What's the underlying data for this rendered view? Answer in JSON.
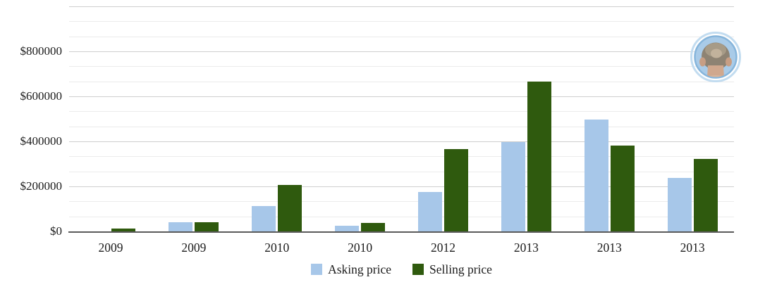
{
  "chart_data": {
    "type": "bar",
    "title": "",
    "categories": [
      "2009",
      "2009",
      "2010",
      "2010",
      "2012",
      "2013",
      "2013",
      "2013"
    ],
    "series": [
      {
        "name": "Asking price",
        "color": "#a7c7e9",
        "values": [
          0,
          45000,
          115000,
          28000,
          178000,
          400000,
          500000,
          240000
        ]
      },
      {
        "name": "Selling price",
        "color": "#2f5a0e",
        "values": [
          15000,
          45000,
          210000,
          42000,
          370000,
          670000,
          385000,
          325000
        ]
      }
    ],
    "xlabel": "",
    "ylabel": "",
    "ylim": [
      0,
      1000000
    ],
    "y_tick_labels": [
      "$0",
      "$200000",
      "$400000",
      "$600000",
      "$800000"
    ],
    "y_major_interval": 200000,
    "minor_gridlines_between_majors": 2,
    "grid": true,
    "legend_position": "bottom"
  },
  "colors": {
    "minor_grid": "#ebebeb",
    "major_grid": "#cfcfcf",
    "axis_line": "#5a5a5a",
    "text": "#1c1c1c",
    "avatar_ring": "#c2dcf0",
    "avatar_fill": "#a9cbe8"
  },
  "icons": {
    "avatar": "profile-photo-back-of-head"
  }
}
